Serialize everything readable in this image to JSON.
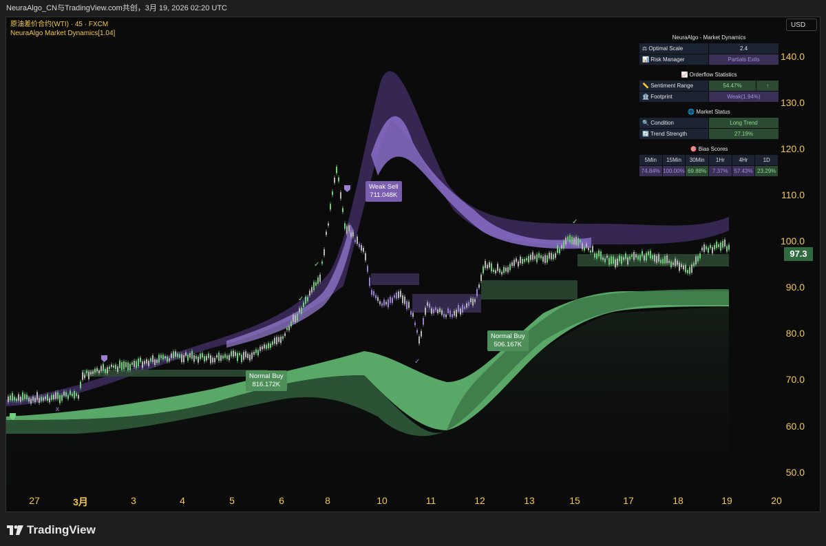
{
  "window": {
    "title": "NeuraAlgo_CN与TradingView.com共创，3月 19, 2026 02:20 UTC"
  },
  "legend": {
    "symbol_line": "原油差价合约(WTI) · 45 · FXCM",
    "indicator_line": "NeuraAlgo Market Dynamics[1.04]"
  },
  "currency_button": "USD",
  "price_axis": {
    "labels": [
      "140.0",
      "130.0",
      "120.0",
      "110.0",
      "100.0",
      "90.0",
      "80.0",
      "70.0",
      "60.0",
      "50.0"
    ],
    "current_price": "97.3"
  },
  "time_axis": {
    "labels": [
      "27",
      "3月",
      "3",
      "4",
      "5",
      "6",
      "8",
      "10",
      "11",
      "12",
      "13",
      "15",
      "17",
      "18",
      "19",
      "20"
    ]
  },
  "panel": {
    "market_dynamics": {
      "title": "NeuraAlgo - Market Dynamics",
      "rows": [
        {
          "icon": "⚖",
          "label": "Optimal Scale",
          "value": "2.4"
        },
        {
          "icon": "📊",
          "label": "Risk Manager",
          "value": "Partials Exits"
        }
      ]
    },
    "orderflow": {
      "title": "📈 Orderflow Statistics",
      "rows": [
        {
          "icon": "📏",
          "label": "Sentiment Range",
          "value": "54.47%",
          "arrow": "↑"
        },
        {
          "icon": "🏦",
          "label": "Footprint",
          "value": "Weak(1.94%)"
        }
      ]
    },
    "market_status": {
      "title": "🌐 Market Status",
      "rows": [
        {
          "icon": "🔍",
          "label": "Condition",
          "value": "Long Trend"
        },
        {
          "icon": "🔄",
          "label": "Trend Strength",
          "value": "27.19%"
        }
      ]
    },
    "bias_scores": {
      "title": "🎯 Bias Scores",
      "headers": [
        "5Min",
        "15Min",
        "30Min",
        "1Hr",
        "4Hr",
        "1D"
      ],
      "values": [
        "74.84%",
        "100.00%",
        "69.88%",
        "7.37%",
        "57.43%",
        "23.29%"
      ]
    }
  },
  "signals": [
    {
      "label": "Weak Sell",
      "volume": "711.048K"
    },
    {
      "label": "Normal Buy",
      "volume": "816.172K"
    },
    {
      "label": "Normal Buy",
      "volume": "506.167K"
    }
  ],
  "footer": {
    "brand": "TradingView"
  },
  "colors": {
    "bull": "#6fcf7f",
    "bear": "#9b7fd4",
    "axis_text": "#f2c94c",
    "band_purple": "#6b4fa8",
    "band_green": "#58a868"
  }
}
